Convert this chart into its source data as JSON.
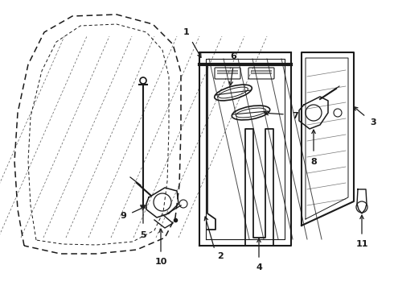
{
  "bg_color": "#ffffff",
  "line_color": "#1a1a1a",
  "figsize": [
    4.9,
    3.6
  ],
  "dpi": 100
}
